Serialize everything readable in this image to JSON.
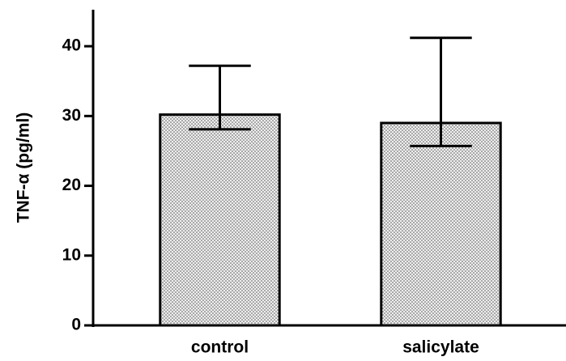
{
  "chart_data": {
    "type": "bar",
    "ylabel": "TNF-α (pg/ml)",
    "categories": [
      "control",
      "salicylate"
    ],
    "values": [
      30.2,
      29.0
    ],
    "error_plus": [
      7.0,
      12.2
    ],
    "error_minus": [
      2.1,
      3.3
    ],
    "color": "#e8e8e8",
    "ylim": [
      0,
      45
    ],
    "yticks": [
      0,
      10,
      20,
      30,
      40
    ],
    "grid": false
  }
}
